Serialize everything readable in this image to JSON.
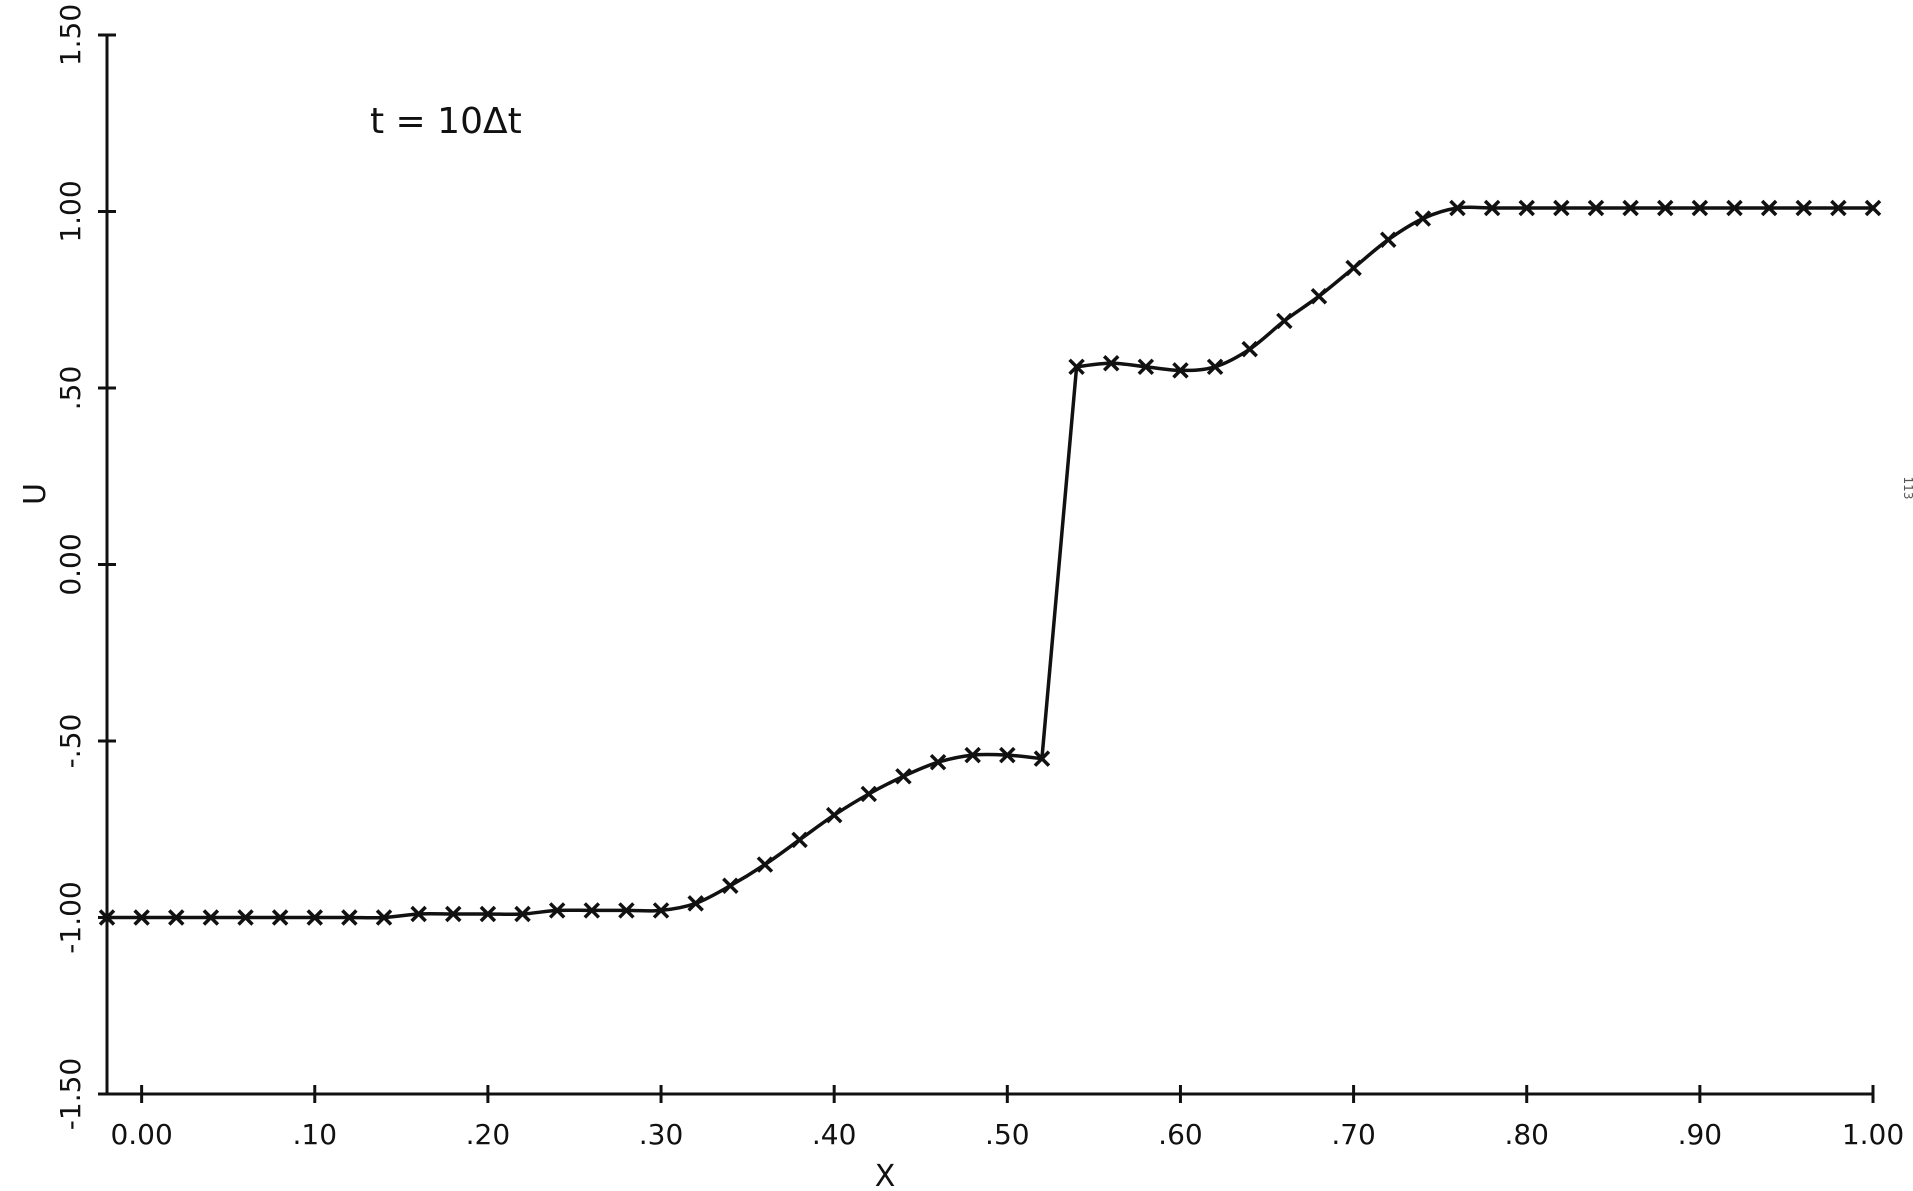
{
  "chart_data": {
    "type": "line",
    "title": "",
    "annotation": "t = 10Δt",
    "xlabel": "X",
    "ylabel": "U",
    "xlim": [
      -0.02,
      1.0
    ],
    "ylim": [
      -1.5,
      1.5
    ],
    "x_ticks": [
      0.0,
      0.1,
      0.2,
      0.3,
      0.4,
      0.5,
      0.6,
      0.7,
      0.8,
      0.9,
      1.0
    ],
    "x_tick_labels": [
      "0.00",
      ".10",
      ".20",
      ".30",
      ".40",
      ".50",
      ".60",
      ".70",
      ".80",
      ".90",
      "1.00"
    ],
    "y_ticks": [
      -1.5,
      -1.0,
      -0.5,
      0.0,
      0.5,
      1.0,
      1.5
    ],
    "y_tick_labels": [
      "-1.50",
      "-1.00",
      "-.50",
      "0.00",
      ".50",
      "1.00",
      "1.50"
    ],
    "grid": false,
    "series": [
      {
        "marker": "x",
        "x": [
          -0.02,
          0.0,
          0.02,
          0.04,
          0.06,
          0.08,
          0.1,
          0.12,
          0.14,
          0.16,
          0.18,
          0.2,
          0.22,
          0.24,
          0.26,
          0.28,
          0.3,
          0.32,
          0.34,
          0.36,
          0.38,
          0.4,
          0.42,
          0.44,
          0.46,
          0.48,
          0.5,
          0.52,
          0.54,
          0.56,
          0.58,
          0.6,
          0.62,
          0.64,
          0.66,
          0.68,
          0.7,
          0.72,
          0.74,
          0.76,
          0.78,
          0.8,
          0.82,
          0.84,
          0.86,
          0.88,
          0.9,
          0.92,
          0.94,
          0.96,
          0.98,
          1.0
        ],
        "y": [
          -1.0,
          -1.0,
          -1.0,
          -1.0,
          -1.0,
          -1.0,
          -1.0,
          -1.0,
          -1.0,
          -0.99,
          -0.99,
          -0.99,
          -0.99,
          -0.98,
          -0.98,
          -0.98,
          -0.98,
          -0.96,
          -0.91,
          -0.85,
          -0.78,
          -0.71,
          -0.65,
          -0.6,
          -0.56,
          -0.54,
          -0.54,
          -0.55,
          0.56,
          0.57,
          0.56,
          0.55,
          0.56,
          0.61,
          0.69,
          0.76,
          0.84,
          0.92,
          0.98,
          1.01,
          1.01,
          1.01,
          1.01,
          1.01,
          1.01,
          1.01,
          1.01,
          1.01,
          1.01,
          1.01,
          1.01,
          1.01
        ]
      }
    ]
  },
  "margin_note": "113"
}
